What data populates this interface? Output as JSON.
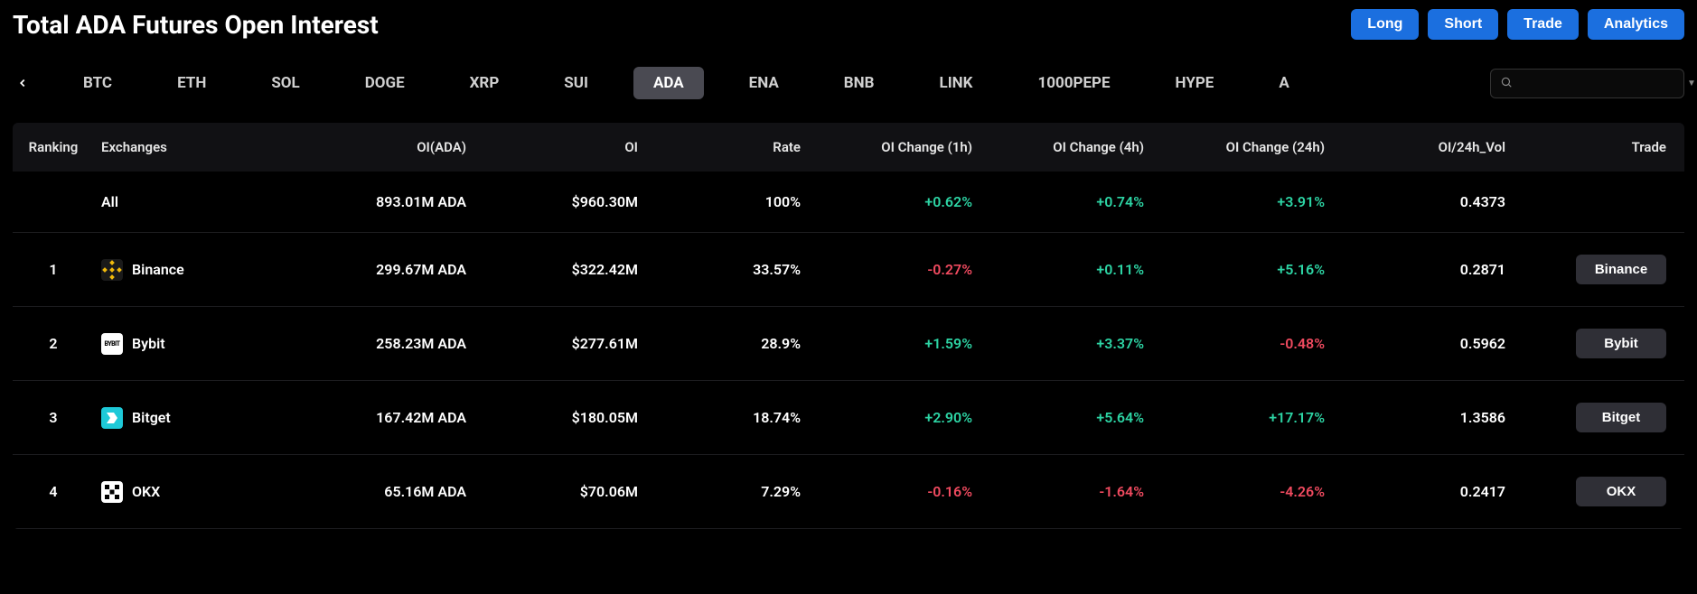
{
  "title": "Total ADA Futures Open Interest",
  "header_buttons": {
    "long": "Long",
    "short": "Short",
    "trade": "Trade",
    "analytics": "Analytics"
  },
  "tabs": [
    {
      "label": "BTC",
      "active": false
    },
    {
      "label": "ETH",
      "active": false
    },
    {
      "label": "SOL",
      "active": false
    },
    {
      "label": "DOGE",
      "active": false
    },
    {
      "label": "XRP",
      "active": false
    },
    {
      "label": "SUI",
      "active": false
    },
    {
      "label": "ADA",
      "active": true
    },
    {
      "label": "ENA",
      "active": false
    },
    {
      "label": "BNB",
      "active": false
    },
    {
      "label": "LINK",
      "active": false
    },
    {
      "label": "1000PEPE",
      "active": false
    },
    {
      "label": "HYPE",
      "active": false
    },
    {
      "label": "A",
      "active": false
    }
  ],
  "search": {
    "placeholder": ""
  },
  "columns": {
    "ranking": "Ranking",
    "exchanges": "Exchanges",
    "oi_ada": "OI(ADA)",
    "oi": "OI",
    "rate": "Rate",
    "ch1": "OI Change (1h)",
    "ch4": "OI Change (4h)",
    "ch24": "OI Change (24h)",
    "vol": "OI/24h_Vol",
    "trade": "Trade"
  },
  "rows": [
    {
      "rank": "",
      "exchange": "All",
      "icon": null,
      "oi_ada": "893.01M ADA",
      "oi": "$960.30M",
      "rate": "100%",
      "ch1": "+0.62%",
      "ch1_dir": "pos",
      "ch4": "+0.74%",
      "ch4_dir": "pos",
      "ch24": "+3.91%",
      "ch24_dir": "pos",
      "vol": "0.4373",
      "trade": ""
    },
    {
      "rank": "1",
      "exchange": "Binance",
      "icon": {
        "bg": "#1a1a1a",
        "fg": "#f0b90b",
        "text": ""
      },
      "oi_ada": "299.67M ADA",
      "oi": "$322.42M",
      "rate": "33.57%",
      "ch1": "-0.27%",
      "ch1_dir": "neg",
      "ch4": "+0.11%",
      "ch4_dir": "pos",
      "ch24": "+5.16%",
      "ch24_dir": "pos",
      "vol": "0.2871",
      "trade": "Binance"
    },
    {
      "rank": "2",
      "exchange": "Bybit",
      "icon": {
        "bg": "#ffffff",
        "fg": "#000000",
        "text": "BYBIT"
      },
      "oi_ada": "258.23M ADA",
      "oi": "$277.61M",
      "rate": "28.9%",
      "ch1": "+1.59%",
      "ch1_dir": "pos",
      "ch4": "+3.37%",
      "ch4_dir": "pos",
      "ch24": "-0.48%",
      "ch24_dir": "neg",
      "vol": "0.5962",
      "trade": "Bybit"
    },
    {
      "rank": "3",
      "exchange": "Bitget",
      "icon": {
        "bg": "#1ec9d8",
        "fg": "#ffffff",
        "text": ""
      },
      "oi_ada": "167.42M ADA",
      "oi": "$180.05M",
      "rate": "18.74%",
      "ch1": "+2.90%",
      "ch1_dir": "pos",
      "ch4": "+5.64%",
      "ch4_dir": "pos",
      "ch24": "+17.17%",
      "ch24_dir": "pos",
      "vol": "1.3586",
      "trade": "Bitget"
    },
    {
      "rank": "4",
      "exchange": "OKX",
      "icon": {
        "bg": "#ffffff",
        "fg": "#000000",
        "text": ""
      },
      "oi_ada": "65.16M ADA",
      "oi": "$70.06M",
      "rate": "7.29%",
      "ch1": "-0.16%",
      "ch1_dir": "neg",
      "ch4": "-1.64%",
      "ch4_dir": "neg",
      "ch24": "-4.26%",
      "ch24_dir": "neg",
      "vol": "0.2417",
      "trade": "OKX"
    }
  ],
  "colors": {
    "positive": "#2dd4a4",
    "negative": "#ef4a5f",
    "primary_button": "#1b6fdf",
    "background": "#000000",
    "tab_active_bg": "#4a4a52",
    "trade_btn_bg": "#2f2f36"
  }
}
